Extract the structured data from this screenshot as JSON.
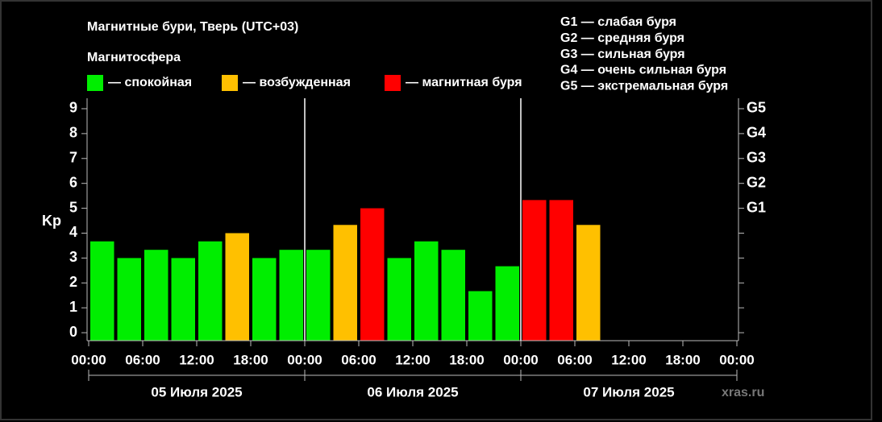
{
  "chart_data": {
    "type": "bar",
    "title": "Магнитные бури, Тверь (UTC+03)",
    "subtitle": "Магнитосфера",
    "legend": [
      {
        "label": "— спокойная",
        "color": "#00ee00"
      },
      {
        "label": "— возбужденная",
        "color": "#ffc000"
      },
      {
        "label": "— магнитная буря",
        "color": "#ff0000"
      }
    ],
    "storm_legend": [
      "G1 — слабая буря",
      "G2 — средняя буря",
      "G3 — сильная буря",
      "G4 — очень сильная буря",
      "G5 — экстремальная буря"
    ],
    "y_label": "Kp",
    "x": [
      0,
      3,
      6,
      9,
      12,
      15,
      18,
      21,
      24,
      27,
      30,
      33,
      36,
      39,
      42,
      45,
      48,
      51,
      54
    ],
    "values": [
      3.67,
      3,
      3.33,
      3,
      3.67,
      4,
      3,
      3.33,
      3.33,
      4.33,
      5,
      3,
      3.67,
      3.33,
      1.67,
      2.67,
      5.33,
      5.33,
      4.33
    ],
    "colors": [
      "#00ee00",
      "#00ee00",
      "#00ee00",
      "#00ee00",
      "#00ee00",
      "#ffc000",
      "#00ee00",
      "#00ee00",
      "#00ee00",
      "#ffc000",
      "#ff0000",
      "#00ee00",
      "#00ee00",
      "#00ee00",
      "#00ee00",
      "#00ee00",
      "#ff0000",
      "#ff0000",
      "#ffc000"
    ],
    "xlim": [
      0,
      72
    ],
    "xticks": [
      {
        "value": 0,
        "label": "00:00"
      },
      {
        "value": 6,
        "label": "06:00"
      },
      {
        "value": 12,
        "label": "12:00"
      },
      {
        "value": 18,
        "label": "18:00"
      },
      {
        "value": 24,
        "label": "00:00"
      },
      {
        "value": 30,
        "label": "06:00"
      },
      {
        "value": 36,
        "label": "12:00"
      },
      {
        "value": 42,
        "label": "18:00"
      },
      {
        "value": 48,
        "label": "00:00"
      },
      {
        "value": 54,
        "label": "06:00"
      },
      {
        "value": 60,
        "label": "12:00"
      },
      {
        "value": 66,
        "label": "18:00"
      },
      {
        "value": 72,
        "label": "00:00"
      }
    ],
    "ylim": [
      -0.32,
      9.42
    ],
    "yticks": [
      0,
      1,
      2,
      3,
      4,
      5,
      6,
      7,
      8,
      9
    ],
    "y2lim": [
      -0.32,
      9.42
    ],
    "y2ticks": [
      0,
      1,
      2,
      3,
      4,
      {
        "value": 5,
        "label": "G1"
      },
      {
        "value": 6,
        "label": "G2"
      },
      {
        "value": 7,
        "label": "G3"
      },
      {
        "value": 8,
        "label": "G4"
      },
      {
        "value": 9,
        "label": "G5"
      }
    ],
    "day_separators": [
      24,
      48
    ],
    "days": [
      {
        "label": "05 Июля 2025",
        "start": 0,
        "end": 24
      },
      {
        "label": "06 Июля 2025",
        "start": 24,
        "end": 48
      },
      {
        "label": "07 Июля 2025",
        "start": 48,
        "end": 72
      }
    ],
    "watermark": "xras.ru"
  }
}
